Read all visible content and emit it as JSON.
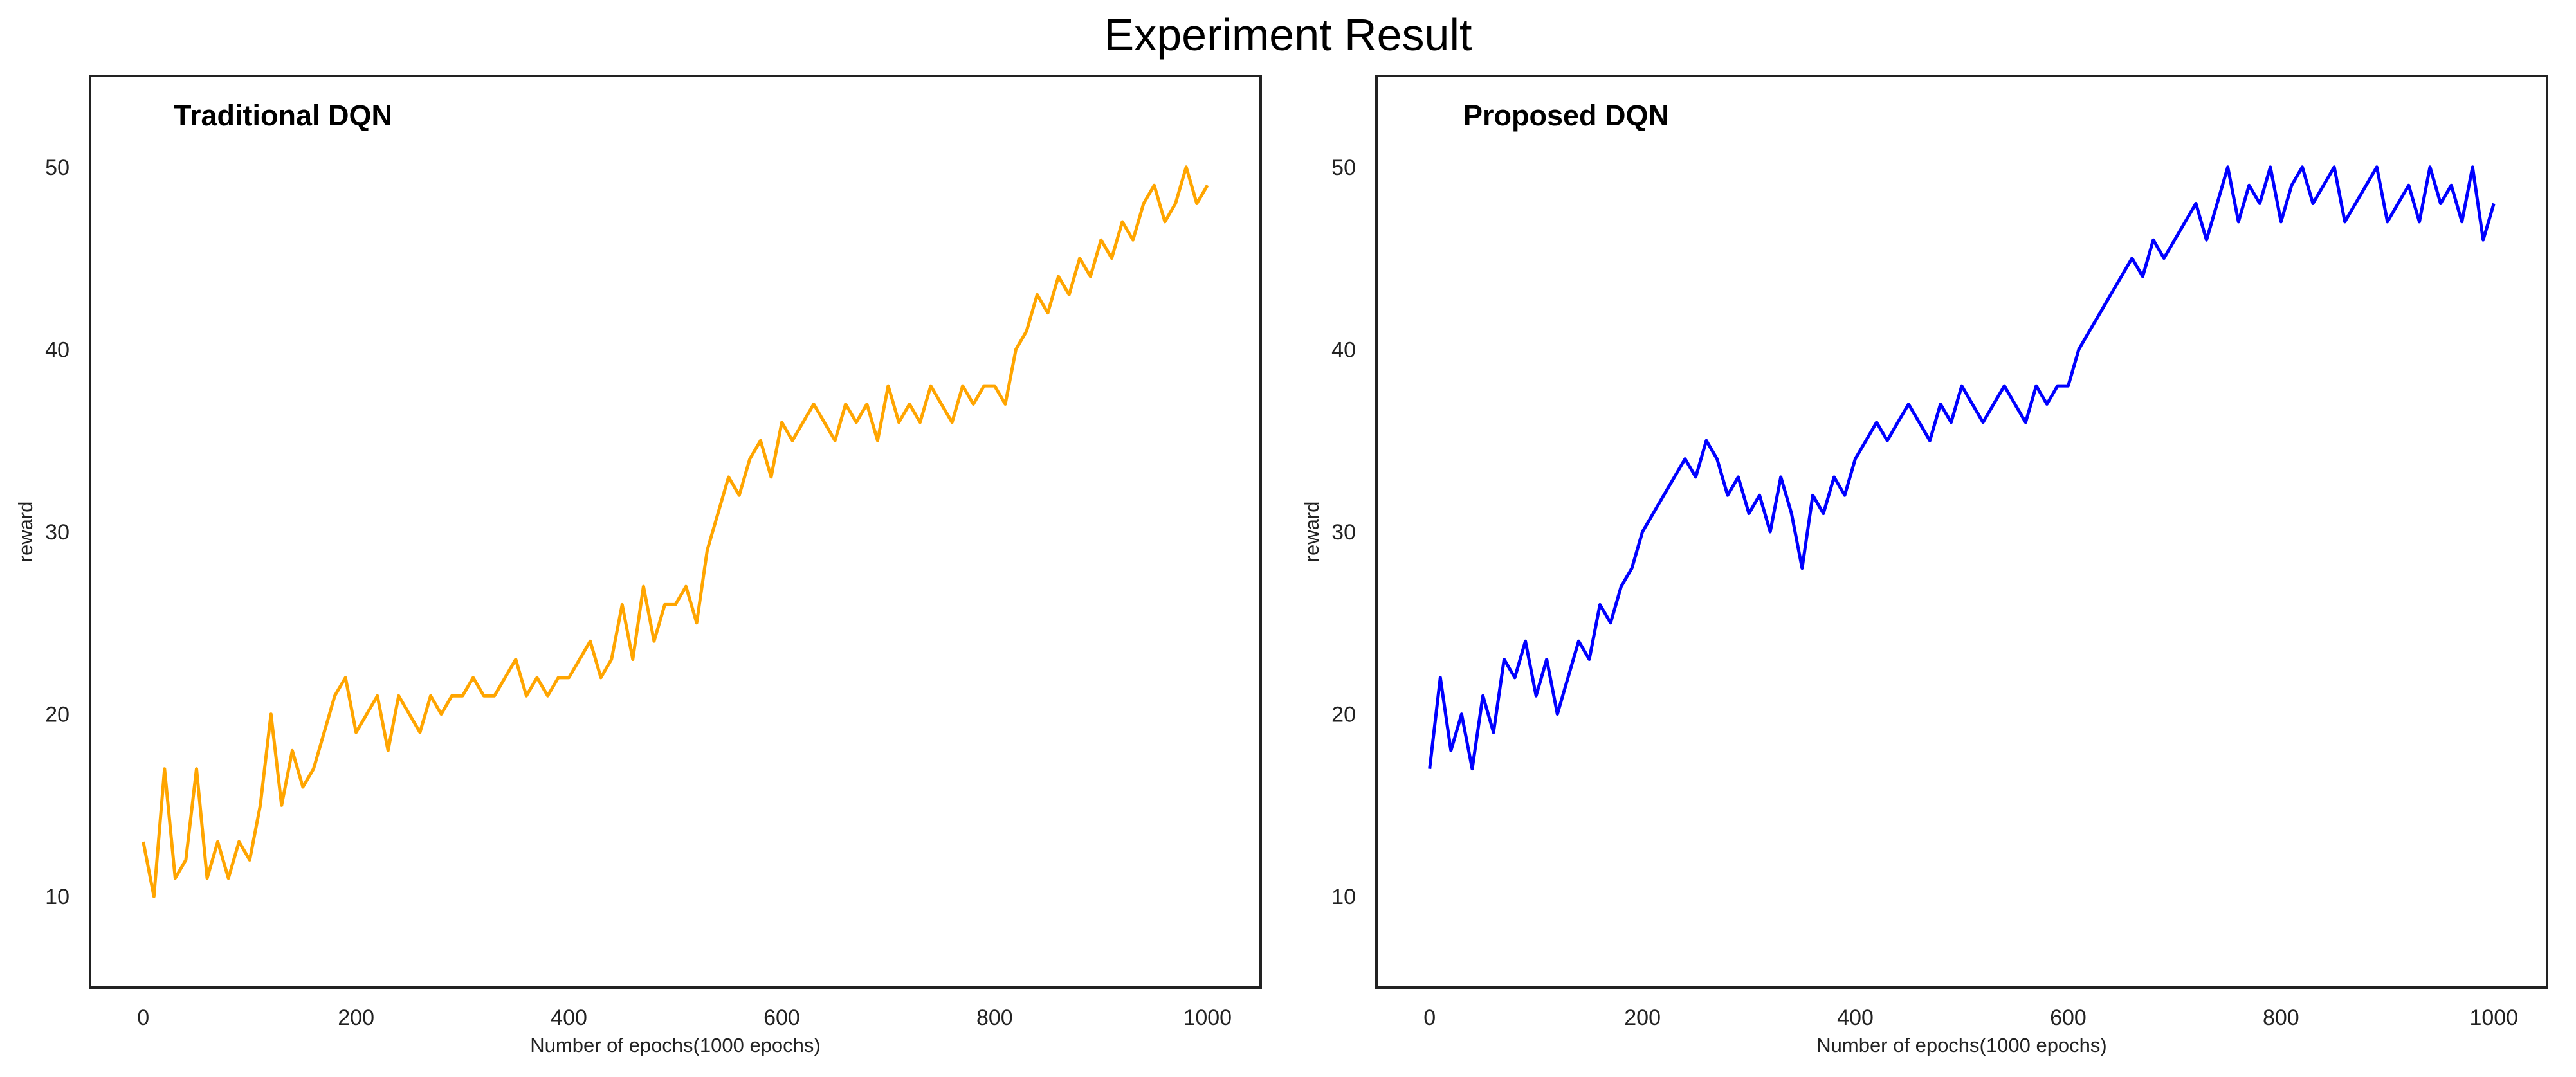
{
  "figure_title": "Experiment Result",
  "chart_data": [
    {
      "type": "line",
      "title": "Traditional DQN",
      "xlabel": "Number of epochs(1000 epochs)",
      "ylabel": "reward",
      "xlim": [
        -50,
        1050
      ],
      "ylim": [
        5,
        55
      ],
      "xticks": [
        0,
        200,
        400,
        600,
        800,
        1000
      ],
      "yticks": [
        10,
        20,
        30,
        40,
        50
      ],
      "grid": false,
      "series": [
        {
          "name": "Traditional DQN",
          "color": "#FFA500",
          "x": [
            0,
            10,
            20,
            30,
            40,
            50,
            60,
            70,
            80,
            90,
            100,
            110,
            120,
            130,
            140,
            150,
            160,
            170,
            180,
            190,
            200,
            210,
            220,
            230,
            240,
            250,
            260,
            270,
            280,
            290,
            300,
            310,
            320,
            330,
            340,
            350,
            360,
            370,
            380,
            390,
            400,
            410,
            420,
            430,
            440,
            450,
            460,
            470,
            480,
            490,
            500,
            510,
            520,
            530,
            540,
            550,
            560,
            570,
            580,
            590,
            600,
            610,
            620,
            630,
            640,
            650,
            660,
            670,
            680,
            690,
            700,
            710,
            720,
            730,
            740,
            750,
            760,
            770,
            780,
            790,
            800,
            810,
            820,
            830,
            840,
            850,
            860,
            870,
            880,
            890,
            900,
            910,
            920,
            930,
            940,
            950,
            960,
            970,
            980,
            990,
            1000
          ],
          "values": [
            13,
            10,
            17,
            11,
            12,
            17,
            11,
            13,
            11,
            13,
            12,
            15,
            20,
            15,
            18,
            16,
            17,
            19,
            21,
            22,
            19,
            20,
            21,
            18,
            21,
            20,
            19,
            21,
            20,
            21,
            21,
            22,
            21,
            21,
            22,
            23,
            21,
            22,
            21,
            22,
            22,
            23,
            24,
            22,
            23,
            26,
            23,
            27,
            24,
            26,
            26,
            27,
            25,
            29,
            31,
            33,
            32,
            34,
            35,
            33,
            36,
            35,
            36,
            37,
            36,
            35,
            37,
            36,
            37,
            35,
            38,
            36,
            37,
            36,
            38,
            37,
            36,
            38,
            37,
            38,
            38,
            37,
            40,
            41,
            43,
            42,
            44,
            43,
            45,
            44,
            46,
            45,
            47,
            46,
            48,
            49,
            47,
            48,
            50,
            48,
            49
          ]
        }
      ]
    },
    {
      "type": "line",
      "title": "Proposed DQN",
      "xlabel": "Number of epochs(1000 epochs)",
      "ylabel": "reward",
      "xlim": [
        -50,
        1050
      ],
      "ylim": [
        5,
        55
      ],
      "xticks": [
        0,
        200,
        400,
        600,
        800,
        1000
      ],
      "yticks": [
        10,
        20,
        30,
        40,
        50
      ],
      "grid": false,
      "series": [
        {
          "name": "Proposed DQN",
          "color": "#0000FF",
          "x": [
            0,
            10,
            20,
            30,
            40,
            50,
            60,
            70,
            80,
            90,
            100,
            110,
            120,
            130,
            140,
            150,
            160,
            170,
            180,
            190,
            200,
            210,
            220,
            230,
            240,
            250,
            260,
            270,
            280,
            290,
            300,
            310,
            320,
            330,
            340,
            350,
            360,
            370,
            380,
            390,
            400,
            410,
            420,
            430,
            440,
            450,
            460,
            470,
            480,
            490,
            500,
            510,
            520,
            530,
            540,
            550,
            560,
            570,
            580,
            590,
            600,
            610,
            620,
            630,
            640,
            650,
            660,
            670,
            680,
            690,
            700,
            710,
            720,
            730,
            740,
            750,
            760,
            770,
            780,
            790,
            800,
            810,
            820,
            830,
            840,
            850,
            860,
            870,
            880,
            890,
            900,
            910,
            920,
            930,
            940,
            950,
            960,
            970,
            980,
            990,
            1000
          ],
          "values": [
            17,
            22,
            18,
            20,
            17,
            21,
            19,
            23,
            22,
            24,
            21,
            23,
            20,
            22,
            24,
            23,
            26,
            25,
            27,
            28,
            30,
            31,
            32,
            33,
            34,
            33,
            35,
            34,
            32,
            33,
            31,
            32,
            30,
            33,
            31,
            28,
            32,
            31,
            33,
            32,
            34,
            35,
            36,
            35,
            36,
            37,
            36,
            35,
            37,
            36,
            38,
            37,
            36,
            37,
            38,
            37,
            36,
            38,
            37,
            38,
            38,
            40,
            41,
            42,
            43,
            44,
            45,
            44,
            46,
            45,
            46,
            47,
            48,
            46,
            48,
            50,
            47,
            49,
            48,
            50,
            47,
            49,
            50,
            48,
            49,
            50,
            47,
            48,
            49,
            50,
            47,
            48,
            49,
            47,
            50,
            48,
            49,
            47,
            50,
            46,
            48
          ]
        }
      ]
    }
  ]
}
